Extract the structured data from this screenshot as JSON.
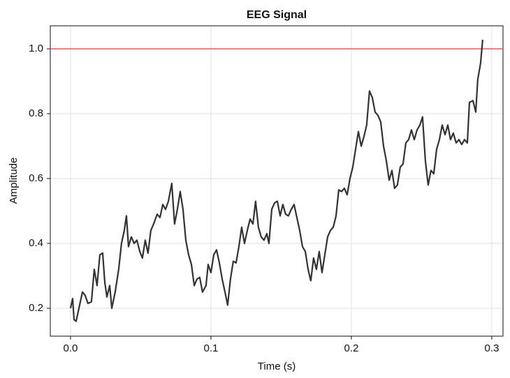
{
  "chart_data": {
    "type": "line",
    "title": "EEG Signal",
    "x_label": "Time (s)",
    "y_label": "Amplitude",
    "x": [
      0,
      0.0015,
      0.0025,
      0.004,
      0.006,
      0.0085,
      0.0104,
      0.0124,
      0.0149,
      0.0169,
      0.0189,
      0.0209,
      0.0229,
      0.0244,
      0.0259,
      0.0279,
      0.0294,
      0.0318,
      0.0343,
      0.0363,
      0.0383,
      0.0398,
      0.0413,
      0.0433,
      0.0453,
      0.0473,
      0.0493,
      0.0512,
      0.0532,
      0.0552,
      0.0572,
      0.0592,
      0.0617,
      0.0637,
      0.0657,
      0.0677,
      0.0697,
      0.0721,
      0.0741,
      0.0761,
      0.0781,
      0.0801,
      0.0821,
      0.0841,
      0.0861,
      0.0881,
      0.09,
      0.092,
      0.094,
      0.0965,
      0.098,
      0.1,
      0.102,
      0.104,
      0.106,
      0.108,
      0.11,
      0.1119,
      0.1139,
      0.1159,
      0.1179,
      0.1199,
      0.1219,
      0.1239,
      0.1259,
      0.1279,
      0.1299,
      0.1318,
      0.1338,
      0.1358,
      0.1378,
      0.1398,
      0.1413,
      0.1433,
      0.1453,
      0.1473,
      0.1493,
      0.1512,
      0.1532,
      0.1552,
      0.1572,
      0.1592,
      0.1612,
      0.1632,
      0.1652,
      0.1672,
      0.1692,
      0.1711,
      0.1731,
      0.1751,
      0.1771,
      0.1791,
      0.1811,
      0.1831,
      0.1851,
      0.1871,
      0.1891,
      0.191,
      0.193,
      0.195,
      0.197,
      0.199,
      0.201,
      0.203,
      0.205,
      0.207,
      0.209,
      0.2109,
      0.2129,
      0.2149,
      0.2169,
      0.2189,
      0.2209,
      0.2229,
      0.2249,
      0.2269,
      0.2289,
      0.2308,
      0.2328,
      0.2348,
      0.2368,
      0.2388,
      0.2408,
      0.2428,
      0.2448,
      0.2468,
      0.2488,
      0.2507,
      0.2527,
      0.2547,
      0.2567,
      0.2587,
      0.2607,
      0.2627,
      0.2647,
      0.2667,
      0.2687,
      0.2706,
      0.2726,
      0.2746,
      0.2766,
      0.2786,
      0.2806,
      0.2826,
      0.2841,
      0.2866,
      0.2886,
      0.29,
      0.292,
      0.2935
    ],
    "values": [
      0.2,
      0.23,
      0.165,
      0.16,
      0.2,
      0.25,
      0.24,
      0.215,
      0.22,
      0.32,
      0.27,
      0.365,
      0.37,
      0.28,
      0.235,
      0.27,
      0.2,
      0.25,
      0.32,
      0.4,
      0.44,
      0.485,
      0.39,
      0.42,
      0.4,
      0.41,
      0.375,
      0.355,
      0.41,
      0.37,
      0.44,
      0.46,
      0.49,
      0.48,
      0.52,
      0.505,
      0.53,
      0.585,
      0.46,
      0.505,
      0.56,
      0.505,
      0.41,
      0.365,
      0.335,
      0.27,
      0.29,
      0.295,
      0.25,
      0.27,
      0.335,
      0.31,
      0.365,
      0.38,
      0.34,
      0.29,
      0.25,
      0.21,
      0.29,
      0.345,
      0.34,
      0.39,
      0.45,
      0.4,
      0.44,
      0.475,
      0.46,
      0.53,
      0.45,
      0.42,
      0.41,
      0.43,
      0.4,
      0.505,
      0.525,
      0.53,
      0.485,
      0.52,
      0.49,
      0.485,
      0.505,
      0.52,
      0.48,
      0.44,
      0.39,
      0.375,
      0.32,
      0.285,
      0.355,
      0.32,
      0.375,
      0.31,
      0.365,
      0.42,
      0.44,
      0.45,
      0.485,
      0.565,
      0.56,
      0.57,
      0.55,
      0.6,
      0.635,
      0.69,
      0.745,
      0.7,
      0.73,
      0.765,
      0.87,
      0.85,
      0.805,
      0.795,
      0.775,
      0.7,
      0.655,
      0.595,
      0.625,
      0.57,
      0.58,
      0.635,
      0.645,
      0.71,
      0.72,
      0.75,
      0.72,
      0.75,
      0.765,
      0.79,
      0.655,
      0.58,
      0.625,
      0.615,
      0.69,
      0.72,
      0.765,
      0.735,
      0.765,
      0.72,
      0.74,
      0.71,
      0.72,
      0.705,
      0.72,
      0.71,
      0.835,
      0.84,
      0.805,
      0.905,
      0.955,
      1.028
    ],
    "color": "#333333",
    "hline": {
      "value": 1,
      "color": "#e8585a"
    },
    "xlim": [
      -0.0144,
      0.308
    ],
    "ylim": [
      0.114,
      1.071
    ],
    "xticks": [
      {
        "value": 0,
        "label": "0.0"
      },
      0.1,
      0.2,
      0.3
    ],
    "yticks": [
      0.2,
      0.4,
      0.6,
      0.8,
      {
        "value": 1,
        "label": "1.0"
      }
    ],
    "grid": true
  }
}
